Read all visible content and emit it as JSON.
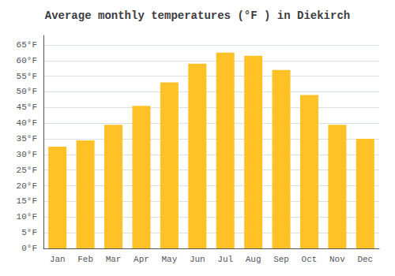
{
  "chart_data": {
    "type": "bar",
    "title": "Average monthly temperatures (°F ) in Diekirch",
    "categories": [
      "Jan",
      "Feb",
      "Mar",
      "Apr",
      "May",
      "Jun",
      "Jul",
      "Aug",
      "Sep",
      "Oct",
      "Nov",
      "Dec"
    ],
    "values": [
      32.5,
      34.5,
      39.5,
      45.5,
      53.0,
      59.0,
      62.5,
      61.5,
      57.0,
      49.0,
      39.5,
      35.0
    ],
    "color": "#FFC125",
    "ylim": [
      0,
      68
    ],
    "yticks": [
      {
        "value": 0,
        "label": "0°F"
      },
      {
        "value": 5,
        "label": "5°F"
      },
      {
        "value": 10,
        "label": "10°F"
      },
      {
        "value": 15,
        "label": "15°F"
      },
      {
        "value": 20,
        "label": "20°F"
      },
      {
        "value": 25,
        "label": "25°F"
      },
      {
        "value": 30,
        "label": "30°F"
      },
      {
        "value": 35,
        "label": "35°F"
      },
      {
        "value": 40,
        "label": "40°F"
      },
      {
        "value": 45,
        "label": "45°F"
      },
      {
        "value": 50,
        "label": "50°F"
      },
      {
        "value": 55,
        "label": "55°F"
      },
      {
        "value": 60,
        "label": "60°F"
      },
      {
        "value": 65,
        "label": "65°F"
      }
    ],
    "grid": true
  }
}
